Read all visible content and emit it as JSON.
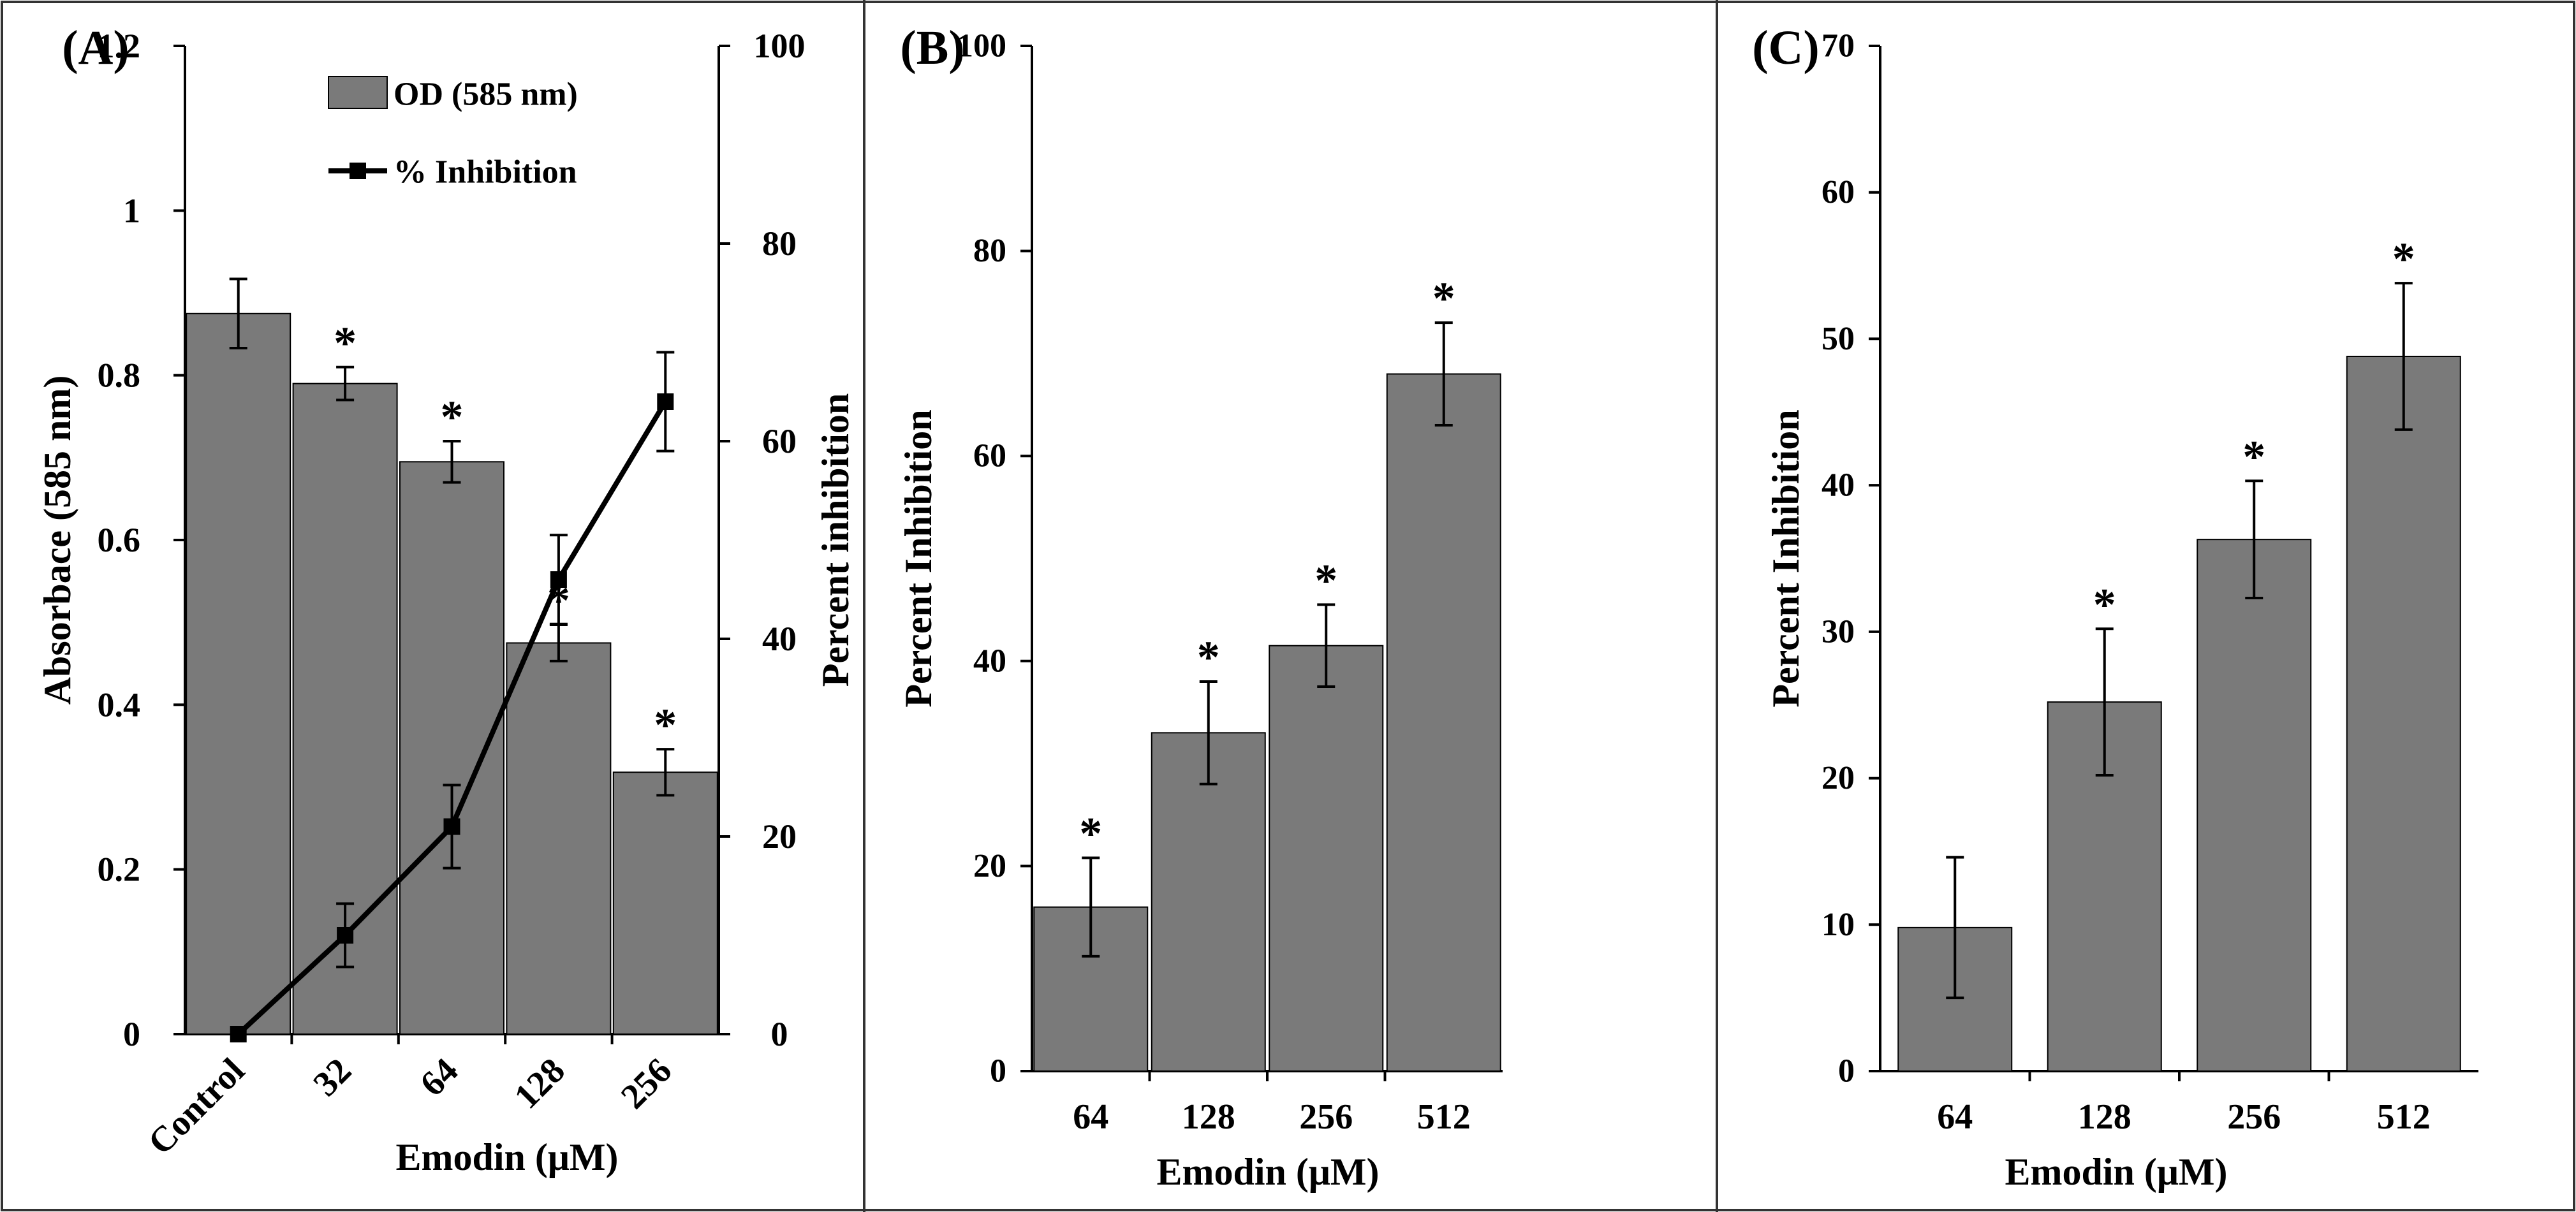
{
  "chart_data": [
    {
      "panel_label": "(A)",
      "type": "bar",
      "categories": [
        "Control",
        "32",
        "64",
        "128",
        "256"
      ],
      "xlabel": "Emodin (μM)",
      "ylabel": "Absorbace (585 nm)",
      "y2label": "Percent inhibition",
      "ylim": [
        0,
        1.2
      ],
      "yticks": [
        "0",
        "0.2",
        "0.4",
        "0.6",
        "0.8",
        "1",
        "1.2"
      ],
      "y2lim": [
        0,
        100
      ],
      "y2ticks": [
        "0",
        "20",
        "40",
        "60",
        "80",
        "100"
      ],
      "series": [
        {
          "name": "OD (585 nm)",
          "type": "bar",
          "axis": "left",
          "values": [
            0.875,
            0.79,
            0.695,
            0.475,
            0.318
          ],
          "errors": [
            0.042,
            0.02,
            0.025,
            0.022,
            0.028
          ],
          "significant": [
            false,
            true,
            true,
            true,
            true
          ]
        },
        {
          "name": "% Inhibition",
          "type": "line",
          "axis": "right",
          "values": [
            0,
            10,
            21,
            46,
            64
          ],
          "errors": [
            0,
            3.2,
            4.2,
            4.5,
            5
          ]
        }
      ],
      "legend": {
        "placement": "top-center",
        "entries": [
          "OD (585 nm)",
          "% Inhibition"
        ]
      },
      "significance_marker": "*"
    },
    {
      "panel_label": "(B)",
      "type": "bar",
      "categories": [
        "64",
        "128",
        "256",
        "512"
      ],
      "xlabel": "Emodin (μM)",
      "ylabel": "Percent Inhibition",
      "ylim": [
        0,
        100
      ],
      "yticks": [
        "0",
        "20",
        "40",
        "60",
        "80",
        "100"
      ],
      "values": [
        16,
        33,
        41.5,
        68
      ],
      "errors": [
        4.8,
        5,
        4,
        5
      ],
      "significant": [
        true,
        true,
        true,
        true
      ],
      "significance_marker": "*"
    },
    {
      "panel_label": "(C)",
      "type": "bar",
      "categories": [
        "64",
        "128",
        "256",
        "512"
      ],
      "xlabel": "Emodin (μM)",
      "ylabel": "Percent Inhibition",
      "ylim": [
        0,
        70
      ],
      "yticks": [
        "0",
        "10",
        "20",
        "30",
        "40",
        "50",
        "60",
        "70"
      ],
      "values": [
        9.8,
        25.2,
        36.3,
        48.8
      ],
      "errors": [
        4.8,
        5,
        4,
        5
      ],
      "significant": [
        false,
        true,
        true,
        true
      ],
      "significance_marker": "*"
    }
  ],
  "colors": {
    "bar_fill": "#7a7a7a",
    "line": "#000000",
    "axis": "#000000",
    "frame": "#333333",
    "background": "#ffffff"
  }
}
